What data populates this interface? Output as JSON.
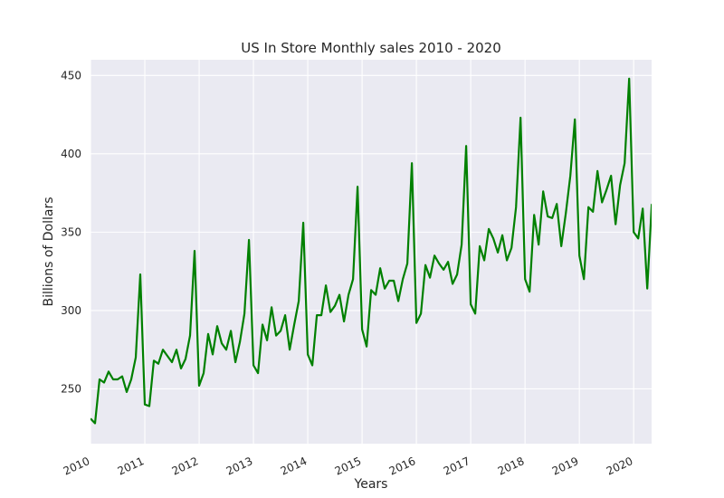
{
  "chart_data": {
    "type": "line",
    "title": "US In Store Monthly sales 2010 - 2020",
    "xlabel": "Years",
    "ylabel": "Billions of Dollars",
    "xlim": [
      2010.0,
      2020.33
    ],
    "ylim": [
      215,
      460
    ],
    "x_ticks": [
      "2010",
      "2011",
      "2012",
      "2013",
      "2014",
      "2015",
      "2016",
      "2017",
      "2018",
      "2019",
      "2020"
    ],
    "y_ticks": [
      250,
      300,
      350,
      400,
      450
    ],
    "grid": true,
    "colors": {
      "line": "#008000",
      "plot_background": "#EAEAF2",
      "grid": "#ffffff"
    },
    "series": [
      {
        "x": [
          "2010-01",
          "2010-02",
          "2010-03",
          "2010-04",
          "2010-05",
          "2010-06",
          "2010-07",
          "2010-08",
          "2010-09",
          "2010-10",
          "2010-11",
          "2010-12",
          "2011-01",
          "2011-02",
          "2011-03",
          "2011-04",
          "2011-05",
          "2011-06",
          "2011-07",
          "2011-08",
          "2011-09",
          "2011-10",
          "2011-11",
          "2011-12",
          "2012-01",
          "2012-02",
          "2012-03",
          "2012-04",
          "2012-05",
          "2012-06",
          "2012-07",
          "2012-08",
          "2012-09",
          "2012-10",
          "2012-11",
          "2012-12",
          "2013-01",
          "2013-02",
          "2013-03",
          "2013-04",
          "2013-05",
          "2013-06",
          "2013-07",
          "2013-08",
          "2013-09",
          "2013-10",
          "2013-11",
          "2013-12",
          "2014-01",
          "2014-02",
          "2014-03",
          "2014-04",
          "2014-05",
          "2014-06",
          "2014-07",
          "2014-08",
          "2014-09",
          "2014-10",
          "2014-11",
          "2014-12",
          "2015-01",
          "2015-02",
          "2015-03",
          "2015-04",
          "2015-05",
          "2015-06",
          "2015-07",
          "2015-08",
          "2015-09",
          "2015-10",
          "2015-11",
          "2015-12",
          "2016-01",
          "2016-02",
          "2016-03",
          "2016-04",
          "2016-05",
          "2016-06",
          "2016-07",
          "2016-08",
          "2016-09",
          "2016-10",
          "2016-11",
          "2016-12",
          "2017-01",
          "2017-02",
          "2017-03",
          "2017-04",
          "2017-05",
          "2017-06",
          "2017-07",
          "2017-08",
          "2017-09",
          "2017-10",
          "2017-11",
          "2017-12",
          "2018-01",
          "2018-02",
          "2018-03",
          "2018-04",
          "2018-05",
          "2018-06",
          "2018-07",
          "2018-08",
          "2018-09",
          "2018-10",
          "2018-11",
          "2018-12",
          "2019-01",
          "2019-02",
          "2019-03",
          "2019-04",
          "2019-05",
          "2019-06",
          "2019-07",
          "2019-08",
          "2019-09",
          "2019-10",
          "2019-11",
          "2019-12",
          "2020-01",
          "2020-02",
          "2020-03",
          "2020-04",
          "2020-05"
        ],
        "values": [
          231,
          228,
          256,
          254,
          261,
          256,
          256,
          258,
          248,
          256,
          270,
          323,
          240,
          239,
          268,
          266,
          275,
          271,
          267,
          275,
          263,
          269,
          284,
          338,
          252,
          260,
          285,
          272,
          290,
          279,
          275,
          287,
          267,
          280,
          298,
          345,
          265,
          260,
          291,
          281,
          302,
          284,
          287,
          297,
          275,
          291,
          306,
          356,
          272,
          265,
          297,
          297,
          316,
          299,
          303,
          310,
          293,
          310,
          320,
          379,
          288,
          277,
          313,
          310,
          327,
          314,
          319,
          319,
          306,
          320,
          330,
          394,
          292,
          298,
          329,
          321,
          335,
          330,
          326,
          331,
          317,
          323,
          342,
          405,
          304,
          298,
          341,
          332,
          352,
          346,
          337,
          348,
          332,
          340,
          366,
          423,
          320,
          312,
          361,
          342,
          376,
          360,
          359,
          368,
          341,
          362,
          386,
          422,
          335,
          320,
          366,
          363,
          389,
          369,
          377,
          386,
          355,
          380,
          394,
          448,
          350,
          346,
          365,
          314,
          368
        ]
      }
    ]
  }
}
